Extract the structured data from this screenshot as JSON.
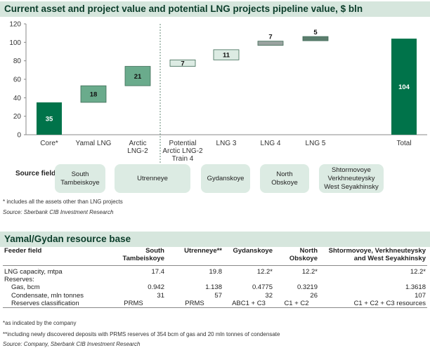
{
  "chart_title": "Current asset and project value and potential LNG projects pipeline value, $ bln",
  "chart_data": {
    "type": "bar",
    "subtype": "waterfall",
    "categories": [
      "Core*",
      "Yamal LNG",
      "Arctic LNG-2",
      "Potential Arctic LNG-2 Train 4",
      "LNG 3",
      "LNG 4",
      "LNG 5",
      "",
      "Total"
    ],
    "category_lines": [
      [
        "Core*"
      ],
      [
        "Yamal LNG"
      ],
      [
        "Arctic",
        "LNG-2"
      ],
      [
        "Potential",
        "Arctic LNG-2",
        "Train 4"
      ],
      [
        "LNG 3"
      ],
      [
        "LNG 4"
      ],
      [
        "LNG 5"
      ],
      [
        ""
      ],
      [
        "Total"
      ]
    ],
    "values": [
      35,
      18,
      21,
      7,
      11,
      7,
      5,
      null,
      104
    ],
    "bases": [
      0,
      35,
      53,
      74,
      81,
      92,
      99,
      null,
      0
    ],
    "value_labels": [
      "35",
      "18",
      "21",
      "7",
      "11",
      "7",
      "5",
      "",
      "104"
    ],
    "ylim": [
      0,
      120
    ],
    "yticks": [
      0,
      20,
      40,
      60,
      80,
      100,
      120
    ],
    "divider_after_category": "Arctic LNG-2",
    "colors": {
      "total": "#00734a",
      "current": "#6aab8c",
      "potential": "#dcebe3",
      "lng4": "#9aa3a0",
      "lng5": "#5c7e6e",
      "outline": "#3e6b56"
    },
    "bar_styles": [
      "total",
      "current",
      "current",
      "potential",
      "potential",
      "lng4",
      "lng5",
      "none",
      "total"
    ],
    "grid": false,
    "legend": "none"
  },
  "source_fields": {
    "label": "Source fields:",
    "boxes": [
      "South\nTambeiskoye",
      "Utrenneye",
      "Gydanskoye",
      "North\nObskoye",
      "Shtormovoye\nVerkhneuteysky\nWest Seyakhinsky"
    ]
  },
  "notes": {
    "chart_footnote": "* includes all the assets other than LNG projects",
    "chart_source": "Source: Sberbank CIB Investment Research",
    "table_footnote1": "*as indicated by the company",
    "table_footnote2": "**including newly discovered deposits with PRMS reserves of 354 bcm of gas and 20 mln tonnes of condensate",
    "table_source": "Source: Company, Sberbank CIB Investment Research"
  },
  "table": {
    "title": "Yamal/Gydan resource base",
    "headers": [
      "Feeder field",
      "South\nTambeiskoye",
      "Utrenneye**",
      "Gydanskoye",
      "North\nObskoye",
      "Shtormovoye, Verkhneuteysky\nand West Seyakhinsky"
    ],
    "rows": [
      {
        "label": "LNG capacity, mtpa",
        "cells": [
          "17.4",
          "19.8",
          "12.2*",
          "12.2*",
          "12.2*"
        ]
      },
      {
        "label": "Reserves:",
        "cells": [
          "",
          "",
          "",
          "",
          ""
        ]
      },
      {
        "label": "Gas, bcm",
        "cells": [
          "0.942",
          "1.138",
          "0.4775",
          "0.3219",
          "1.3618"
        ]
      },
      {
        "label": "Condensate, mln tonnes",
        "cells": [
          "31",
          "57",
          "32",
          "26",
          "107"
        ]
      },
      {
        "label": "Reserves classification",
        "cells": [
          "PRMS",
          "PRMS",
          "ABC1 + C3",
          "C1 + C2",
          "C1 + C2 + C3 resources"
        ]
      }
    ]
  }
}
